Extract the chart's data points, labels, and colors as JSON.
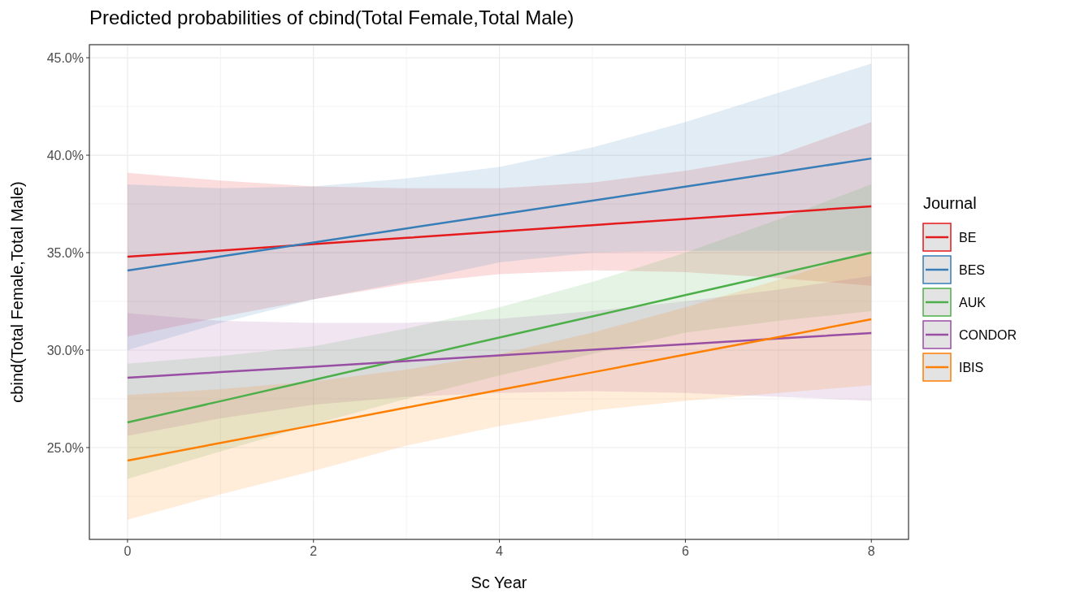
{
  "chart_data": {
    "type": "line",
    "title": "Predicted probabilities of cbind(Total Female,Total Male)",
    "xlabel": "Sc Year",
    "ylabel": "cbind(Total Female,Total Male)",
    "legend_title": "Journal",
    "legend": "right",
    "grid": true,
    "x": [
      0,
      1,
      2,
      3,
      4,
      5,
      6,
      7,
      8
    ],
    "xlim": [
      -0.41,
      8.4
    ],
    "xticks": [
      0,
      2,
      4,
      6,
      8
    ],
    "ylim": [
      20.29,
      45.67
    ],
    "yticks": [
      {
        "value": 25,
        "label": "25.0%"
      },
      {
        "value": 30,
        "label": "30.0%"
      },
      {
        "value": 35,
        "label": "35.0%"
      },
      {
        "value": 40,
        "label": "40.0%"
      },
      {
        "value": 45,
        "label": "45.0%"
      }
    ],
    "series": [
      {
        "name": "BE",
        "color": "#e41a1c",
        "values": [
          34.79,
          35.11,
          35.44,
          35.76,
          36.08,
          36.41,
          36.73,
          37.05,
          37.38
        ],
        "upper": [
          39.1,
          38.7,
          38.4,
          38.3,
          38.3,
          38.6,
          39.2,
          40.0,
          41.7
        ],
        "lower": [
          30.7,
          31.7,
          32.6,
          33.4,
          33.9,
          34.1,
          34.0,
          33.7,
          33.3
        ]
      },
      {
        "name": "BES",
        "color": "#377eb8",
        "values": [
          34.08,
          34.8,
          35.52,
          36.24,
          36.96,
          37.67,
          38.39,
          39.11,
          39.83
        ],
        "upper": [
          38.5,
          38.3,
          38.4,
          38.8,
          39.4,
          40.4,
          41.7,
          43.2,
          44.7
        ],
        "lower": [
          30.0,
          31.4,
          32.6,
          33.5,
          34.5,
          35.0,
          35.1,
          35.1,
          35.1
        ]
      },
      {
        "name": "AUK",
        "color": "#4daf4a",
        "values": [
          26.29,
          27.38,
          28.47,
          29.56,
          30.65,
          31.73,
          32.82,
          33.91,
          35.0
        ],
        "upper": [
          29.3,
          29.7,
          30.2,
          31.1,
          32.2,
          33.5,
          35.0,
          36.7,
          38.5
        ],
        "lower": [
          23.4,
          24.8,
          26.2,
          27.5,
          28.7,
          29.8,
          30.9,
          31.5,
          32.0
        ]
      },
      {
        "name": "CONDOR",
        "color": "#984ea3",
        "values": [
          28.58,
          28.87,
          29.15,
          29.44,
          29.73,
          30.02,
          30.3,
          30.59,
          30.88
        ],
        "upper": [
          31.9,
          31.5,
          31.4,
          31.4,
          31.6,
          32.0,
          32.5,
          33.1,
          33.8
        ],
        "lower": [
          25.6,
          26.5,
          27.2,
          27.6,
          27.8,
          27.9,
          27.8,
          27.6,
          27.4
        ]
      },
      {
        "name": "IBIS",
        "color": "#ff7f00",
        "values": [
          24.33,
          25.24,
          26.14,
          27.05,
          27.96,
          28.86,
          29.77,
          30.67,
          31.58
        ],
        "upper": [
          27.7,
          28.0,
          28.4,
          29.0,
          29.8,
          30.9,
          32.2,
          33.6,
          35.1
        ],
        "lower": [
          21.3,
          22.6,
          23.8,
          25.1,
          26.1,
          26.9,
          27.4,
          27.8,
          28.2
        ]
      }
    ]
  }
}
